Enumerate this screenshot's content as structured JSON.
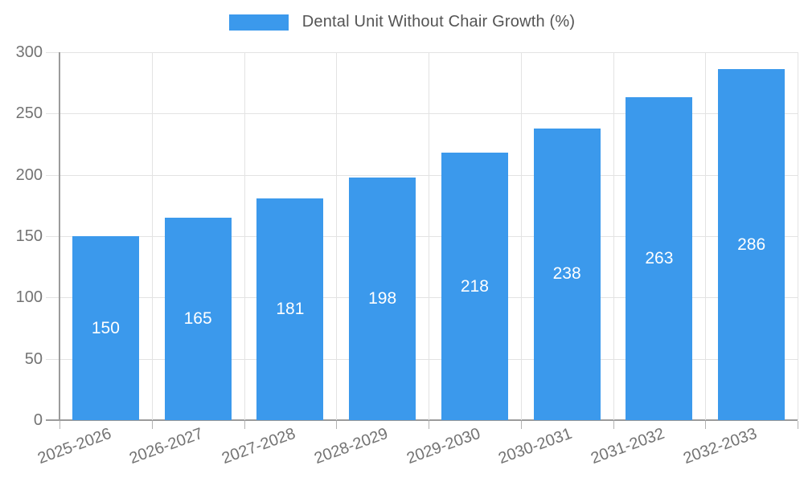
{
  "chart_data": {
    "type": "bar",
    "title": "Dental Unit Without Chair Growth (%)",
    "categories": [
      "2025-2026",
      "2026-2027",
      "2027-2028",
      "2028-2029",
      "2029-2030",
      "2030-2031",
      "2031-2032",
      "2032-2033"
    ],
    "values": [
      150,
      165,
      181,
      198,
      218,
      238,
      263,
      286
    ],
    "value_labels": [
      "150",
      "165",
      "181",
      "198",
      "218",
      "238",
      "263",
      "286"
    ],
    "xlabel": "",
    "ylabel": "",
    "ylim": [
      0,
      300
    ],
    "yticks": [
      0,
      50,
      100,
      150,
      200,
      250,
      300
    ],
    "grid": "on",
    "legend_position": "top-center",
    "colors": {
      "bar": "#3b99ec",
      "bar_value_text": "#ffffff",
      "axis_line": "#9b9b9b",
      "gridline": "#e3e3e3",
      "tick_text": "#737373",
      "legend_text": "#545454",
      "background": "#ffffff"
    }
  }
}
